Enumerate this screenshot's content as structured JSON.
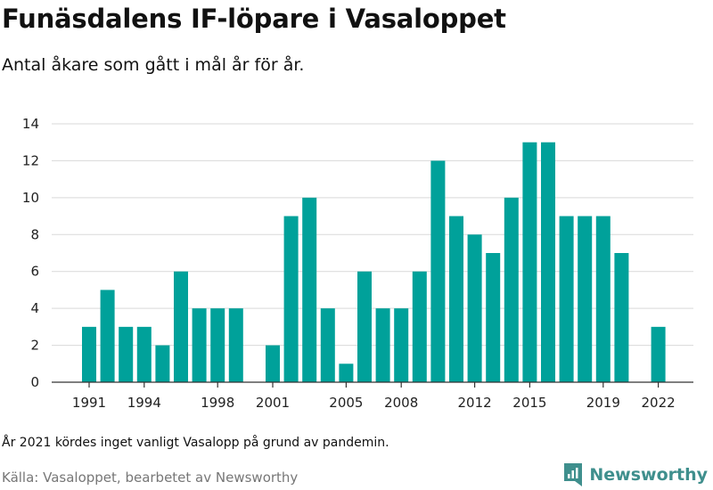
{
  "title": "Funäsdalens IF-löpare i Vasaloppet",
  "subtitle": "Antal åkare som gått i mål år för år.",
  "note": "År 2021 kördes inget vanligt Vasalopp på grund av pandemin.",
  "source": "Källa: Vasaloppet, bearbetet av Newsworthy",
  "brand": {
    "name": "Newsworthy",
    "color": "#3f8f8d"
  },
  "colors": {
    "bar": "#00a19a",
    "grid": "#d9d9d9",
    "axis": "#333333"
  },
  "chart_data": {
    "type": "bar",
    "title": "",
    "xlabel": "",
    "ylabel": "",
    "categories": [
      "1991",
      "1992",
      "1993",
      "1994",
      "1995",
      "1996",
      "1997",
      "1998",
      "1999",
      "2000",
      "2001",
      "2002",
      "2003",
      "2004",
      "2005",
      "2006",
      "2007",
      "2008",
      "2009",
      "2010",
      "2011",
      "2012",
      "2013",
      "2014",
      "2015",
      "2016",
      "2017",
      "2018",
      "2019",
      "2020",
      "2021",
      "2022"
    ],
    "values": [
      3,
      5,
      3,
      3,
      2,
      6,
      4,
      4,
      4,
      null,
      2,
      9,
      10,
      4,
      1,
      6,
      4,
      4,
      6,
      12,
      9,
      8,
      7,
      10,
      13,
      13,
      9,
      9,
      9,
      7,
      null,
      3
    ],
    "x_tick_labels": [
      "1991",
      "1994",
      "1998",
      "2001",
      "2005",
      "2008",
      "2012",
      "2015",
      "2019",
      "2022"
    ],
    "y_ticks": [
      0,
      2,
      4,
      6,
      8,
      10,
      12,
      14
    ],
    "ylim": [
      0,
      14
    ],
    "grid": true
  }
}
